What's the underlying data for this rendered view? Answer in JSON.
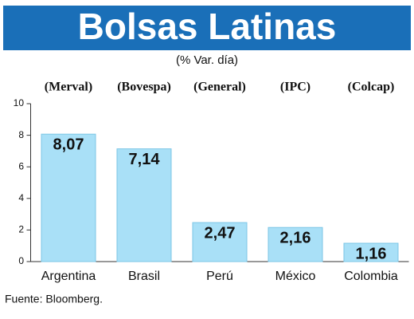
{
  "chart_data": {
    "type": "bar",
    "title": "Bolsas Latinas",
    "subtitle": "(% Var. día)",
    "indices": [
      "(Merval)",
      "(Bovespa)",
      "(General)",
      "(IPC)",
      "(Colcap)"
    ],
    "categories": [
      "Argentina",
      "Brasil",
      "Perú",
      "México",
      "Colombia"
    ],
    "values": [
      8.07,
      7.14,
      2.47,
      2.16,
      1.16
    ],
    "value_labels": [
      "8,07",
      "7,14",
      "2,47",
      "2,16",
      "1,16"
    ],
    "color": "#a9e0f7",
    "title_color": "#1a6fb8",
    "ylim": [
      0,
      10
    ],
    "yticks": [
      0,
      2,
      4,
      6,
      8,
      10
    ],
    "source": "Fuente: Bloomberg."
  }
}
